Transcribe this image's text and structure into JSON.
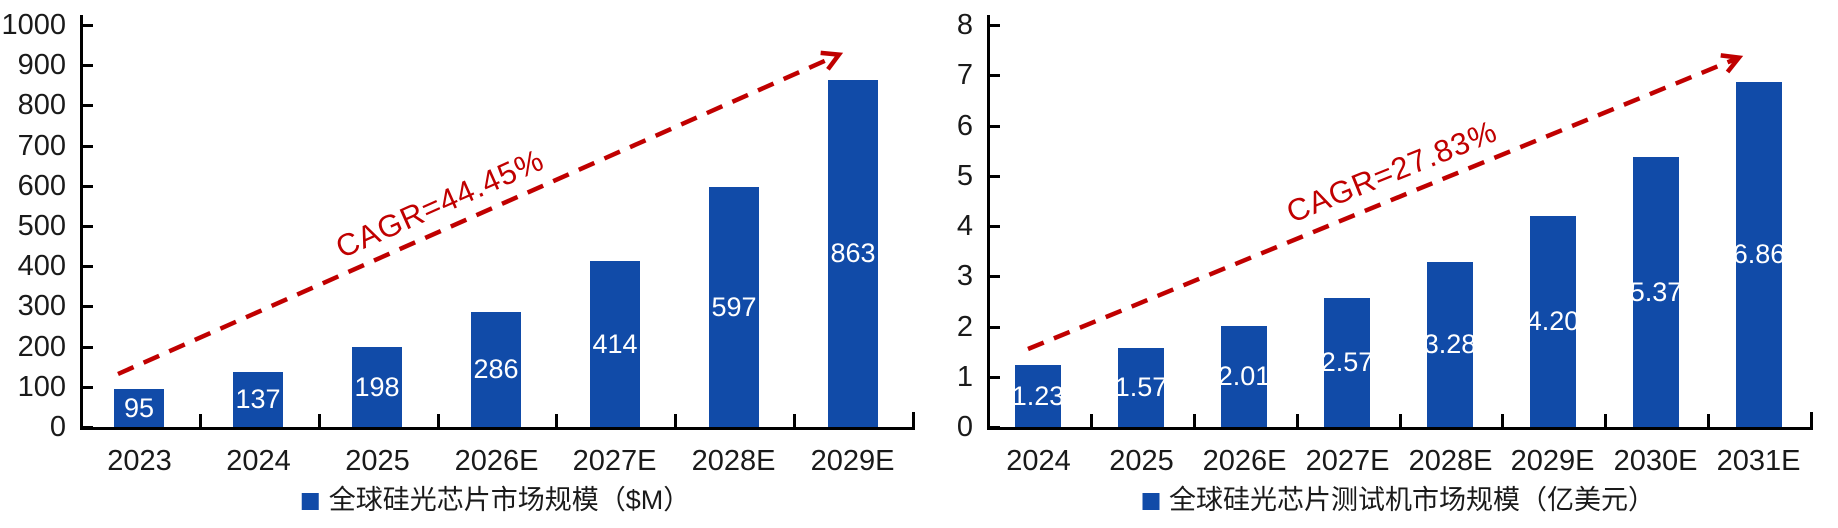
{
  "figure": {
    "background": "#FFFFFF",
    "description_left_legend": "全球硅光芯片市场规模（$M）",
    "description_right_legend": "全球硅光芯片测试机市场规模（亿美元）"
  },
  "colors": {
    "bar": "#114BA8",
    "legend_marker": "#114BA8",
    "arrow": "#C00000",
    "annotation_text": "#C00000",
    "axis": "#000000",
    "label_text": "#1A1A1A",
    "value_label_text": "#FFFFFF"
  },
  "chart_data": [
    {
      "type": "bar",
      "title": "",
      "categories": [
        "2023",
        "2024",
        "2025",
        "2026E",
        "2027E",
        "2028E",
        "2029E"
      ],
      "values": [
        95,
        137,
        198,
        286,
        414,
        597,
        863
      ],
      "value_labels": [
        "95",
        "137",
        "198",
        "286",
        "414",
        "597",
        "863"
      ],
      "xlabel": "",
      "ylabel": "",
      "ylim": [
        0,
        1000
      ],
      "ytick_step": 100,
      "yticks": [
        "0",
        "100",
        "200",
        "300",
        "400",
        "500",
        "600",
        "700",
        "800",
        "900",
        "1000"
      ],
      "grid": false,
      "legend": "全球硅光芯片市场规模（$M）",
      "legend_position": "bottom",
      "annotation": "CAGR=44.45%"
    },
    {
      "type": "bar",
      "title": "",
      "categories": [
        "2024",
        "2025",
        "2026E",
        "2027E",
        "2028E",
        "2029E",
        "2030E",
        "2031E"
      ],
      "values": [
        1.23,
        1.57,
        2.01,
        2.57,
        3.28,
        4.2,
        5.37,
        6.86
      ],
      "value_labels": [
        "1.23",
        "1.57",
        "2.01",
        "2.57",
        "3.28",
        "4.20",
        "5.37",
        "6.86"
      ],
      "xlabel": "",
      "ylabel": "",
      "ylim": [
        0,
        8
      ],
      "ytick_step": 1,
      "yticks": [
        "0",
        "1",
        "2",
        "3",
        "4",
        "5",
        "6",
        "7",
        "8"
      ],
      "grid": false,
      "legend": "全球硅光芯片测试机市场规模（亿美元）",
      "legend_position": "bottom",
      "annotation": "CAGR=27.83%"
    }
  ]
}
